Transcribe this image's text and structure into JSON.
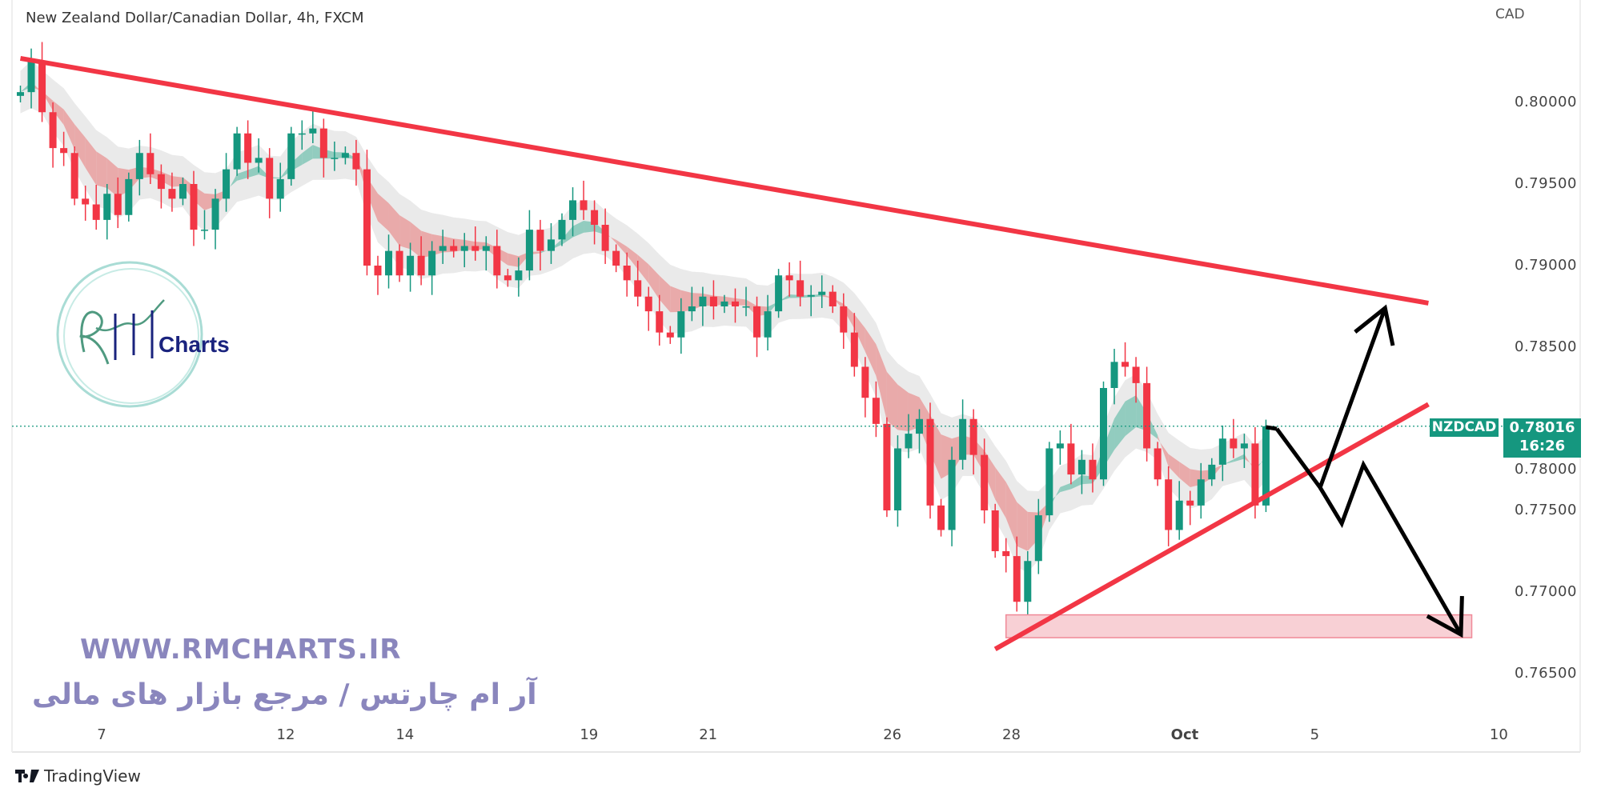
{
  "header": {
    "title": "New Zealand Dollar/Canadian Dollar, 4h, FXCM",
    "currency": "CAD"
  },
  "price_label": {
    "symbol": "NZDCAD",
    "price": "0.78016",
    "countdown": "16:26"
  },
  "watermark": {
    "site": "WWW.RMCHARTS.IR",
    "tagline": "آر ام چارتس / مرجع بازار های مالی",
    "logo_text": "Charts"
  },
  "footer": {
    "brand": "TradingView"
  },
  "colors": {
    "up": "#15977f",
    "down": "#f23645",
    "trendline": "#f23645",
    "arrow": "#000000",
    "zone": "#f8d0d5"
  },
  "chart_data": {
    "type": "candlestick",
    "title": "New Zealand Dollar/Canadian Dollar, 4h, FXCM",
    "ylabel": "CAD",
    "ylim": [
      0.761,
      0.806
    ],
    "y_ticks": [
      "0.80000",
      "0.79500",
      "0.79000",
      "0.78500",
      "0.78000",
      "0.77500",
      "0.77000",
      "0.76500"
    ],
    "y_tick_values": [
      0.8,
      0.795,
      0.79,
      0.785,
      0.78,
      0.775,
      0.77,
      0.765
    ],
    "x_ticks": [
      {
        "label": "7",
        "bar": 7.5
      },
      {
        "label": "12",
        "bar": 24.5
      },
      {
        "label": "14",
        "bar": 35.5
      },
      {
        "label": "19",
        "bar": 52.5
      },
      {
        "label": "21",
        "bar": 63.5
      },
      {
        "label": "26",
        "bar": 80.5
      },
      {
        "label": "28",
        "bar": 91.5
      },
      {
        "label": "Oct",
        "bar": 107.5
      },
      {
        "label": "5",
        "bar": 119.5
      },
      {
        "label": "10",
        "bar": 136.5
      }
    ],
    "first_open": 0.8004,
    "closes": [
      0.80063,
      0.8025,
      0.7994,
      0.7972,
      0.7969,
      0.7941,
      0.79375,
      0.7928,
      0.7944,
      0.7931,
      0.7953,
      0.7969,
      0.7956,
      0.7947,
      0.7941,
      0.795,
      0.7922,
      0.7922,
      0.7941,
      0.7959,
      0.7981,
      0.7963,
      0.7966,
      0.7941,
      0.7953,
      0.7981,
      0.7981,
      0.7984,
      0.7966,
      0.7966,
      0.7969,
      0.7959,
      0.79,
      0.7894,
      0.7909,
      0.7894,
      0.7906,
      0.7894,
      0.7909,
      0.7912,
      0.7909,
      0.7912,
      0.7909,
      0.7912,
      0.7894,
      0.7891,
      0.7897,
      0.7922,
      0.7909,
      0.7916,
      0.7928,
      0.794,
      0.7934,
      0.7925,
      0.7909,
      0.79,
      0.7891,
      0.7881,
      0.7872,
      0.7859,
      0.7856,
      0.7872,
      0.7875,
      0.7881,
      0.7875,
      0.7878,
      0.7875,
      0.7875,
      0.7856,
      0.7872,
      0.7894,
      0.7891,
      0.7881,
      0.7882,
      0.7884,
      0.7875,
      0.7859,
      0.7838,
      0.7819,
      0.7803,
      0.775,
      0.7788,
      0.7797,
      0.7806,
      0.7753,
      0.7738,
      0.7781,
      0.7806,
      0.7784,
      0.775,
      0.7725,
      0.7722,
      0.7694,
      0.7719,
      0.7747,
      0.7788,
      0.7791,
      0.7772,
      0.7781,
      0.7769,
      0.7825,
      0.7841,
      0.7838,
      0.7828,
      0.7788,
      0.7769,
      0.7738,
      0.7756,
      0.7753,
      0.7769,
      0.7778,
      0.7794,
      0.7788,
      0.7791,
      0.7753,
      0.78016
    ],
    "current_price": 0.78016,
    "drawings": {
      "descending_trendline": [
        [
          0,
          0.8027
        ],
        [
          130,
          0.7877
        ]
      ],
      "ascending_trendline": [
        [
          90,
          0.7665
        ],
        [
          130,
          0.7815
        ]
      ],
      "support_zone": {
        "from_bar": 91,
        "to_bar": 134,
        "low": 0.7672,
        "high": 0.7686
      },
      "scenario_up": [
        [
          116,
          0.78
        ],
        [
          120,
          0.7764
        ],
        [
          126,
          0.7874
        ]
      ],
      "scenario_down": [
        [
          120,
          0.7764
        ],
        [
          122,
          0.7742
        ],
        [
          124,
          0.7778
        ],
        [
          133,
          0.7674
        ]
      ]
    }
  }
}
